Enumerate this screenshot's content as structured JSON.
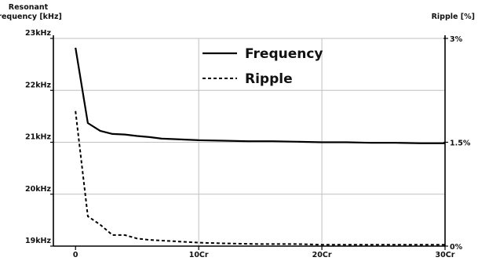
{
  "chart_data": {
    "type": "line",
    "left_axis_title": [
      "Resonant",
      "frequency [kHz]"
    ],
    "right_axis_title": "Ripple [%]",
    "x_ticks": [
      {
        "value": 0,
        "label": "0"
      },
      {
        "value": 10,
        "label": "10Cr"
      },
      {
        "value": 20,
        "label": "20Cr"
      },
      {
        "value": 30,
        "label": "30Cr"
      }
    ],
    "y_left_ticks": [
      {
        "value": 23,
        "label": "23kHz"
      },
      {
        "value": 22,
        "label": "22kHz"
      },
      {
        "value": 21,
        "label": "21kHz"
      },
      {
        "value": 20,
        "label": "20kHz"
      },
      {
        "value": 19,
        "label": "19kHz"
      }
    ],
    "y_right_ticks": [
      {
        "value": 3,
        "label": "3%"
      },
      {
        "value": 1.5,
        "label": "1.5%"
      },
      {
        "value": 0,
        "label": "0%"
      }
    ],
    "xlim": [
      -1.8,
      30
    ],
    "ylim_left": [
      19,
      23
    ],
    "ylim_right": [
      0,
      3
    ],
    "grid": true,
    "legend_position": "top-center",
    "series": [
      {
        "name": "Frequency",
        "axis": "left",
        "style": "solid",
        "x": [
          0,
          1,
          2,
          3,
          4,
          5,
          6,
          7,
          8,
          10,
          12,
          14,
          16,
          18,
          20,
          22,
          24,
          26,
          28,
          30
        ],
        "y": [
          22.82,
          21.37,
          21.22,
          21.16,
          21.15,
          21.12,
          21.1,
          21.07,
          21.06,
          21.04,
          21.03,
          21.02,
          21.02,
          21.01,
          21.0,
          21.0,
          20.99,
          20.99,
          20.98,
          20.98
        ]
      },
      {
        "name": "Ripple",
        "axis": "right",
        "style": "dashed",
        "x": [
          0,
          1,
          2,
          3,
          4,
          5,
          6,
          8,
          10,
          12,
          15,
          18,
          20,
          25,
          30
        ],
        "y": [
          1.95,
          0.43,
          0.31,
          0.16,
          0.16,
          0.11,
          0.09,
          0.07,
          0.05,
          0.04,
          0.03,
          0.03,
          0.02,
          0.02,
          0.02
        ]
      }
    ]
  },
  "colors": {
    "line": "#000000",
    "grid": "#bfbfbf",
    "axis": "#000000"
  }
}
